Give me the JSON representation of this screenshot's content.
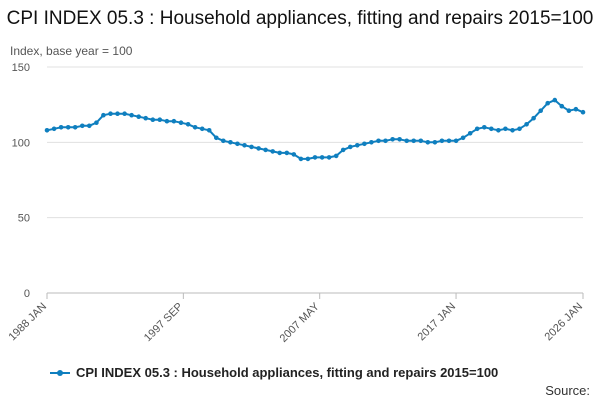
{
  "page": {
    "title": "CPI INDEX 05.3 : Household appliances, fitting and repairs 2015=100",
    "source_label": "Source:"
  },
  "colors": {
    "series": "#0f7fbf",
    "grid": "#e0e0e0",
    "axis": "#bbbbbb",
    "text": "#555555"
  },
  "chart_data": {
    "type": "line",
    "title": "CPI INDEX 05.3 : Household appliances, fitting and repairs 2015=100",
    "ylabel": "Index, base year = 100",
    "xlabel": "",
    "ylim": [
      0,
      150
    ],
    "yticks": [
      0,
      50,
      100,
      150
    ],
    "xtick_labels": [
      "1988 JAN",
      "1997 SEP",
      "2007 MAY",
      "2017 JAN",
      "2026 JAN"
    ],
    "xtick_dates": [
      "1988-01",
      "1997-09",
      "2007-05",
      "2017-01",
      "2026-01"
    ],
    "xlim": [
      "1988-01",
      "2026-01"
    ],
    "grid": true,
    "legend_position": "bottom",
    "series": [
      {
        "name": "CPI INDEX 05.3 : Household appliances, fitting and repairs 2015=100",
        "marker": "circle",
        "x": [
          "1988-01",
          "1988-07",
          "1989-01",
          "1989-07",
          "1990-01",
          "1990-07",
          "1991-01",
          "1991-07",
          "1992-01",
          "1992-07",
          "1993-01",
          "1993-07",
          "1994-01",
          "1994-07",
          "1995-01",
          "1995-07",
          "1996-01",
          "1996-07",
          "1997-01",
          "1997-07",
          "1998-01",
          "1998-07",
          "1999-01",
          "1999-07",
          "2000-01",
          "2000-07",
          "2001-01",
          "2001-07",
          "2002-01",
          "2002-07",
          "2003-01",
          "2003-07",
          "2004-01",
          "2004-07",
          "2005-01",
          "2005-07",
          "2006-01",
          "2006-07",
          "2007-01",
          "2007-07",
          "2008-01",
          "2008-07",
          "2009-01",
          "2009-07",
          "2010-01",
          "2010-07",
          "2011-01",
          "2011-07",
          "2012-01",
          "2012-07",
          "2013-01",
          "2013-07",
          "2014-01",
          "2014-07",
          "2015-01",
          "2015-07",
          "2016-01",
          "2016-07",
          "2017-01",
          "2017-07",
          "2018-01",
          "2018-07",
          "2019-01",
          "2019-07",
          "2020-01",
          "2020-07",
          "2021-01",
          "2021-07",
          "2022-01",
          "2022-07",
          "2023-01",
          "2023-07",
          "2024-01",
          "2024-07",
          "2025-01",
          "2025-07",
          "2026-01"
        ],
        "values": [
          108,
          109,
          110,
          110,
          110,
          111,
          111,
          113,
          118,
          119,
          119,
          119,
          118,
          117,
          116,
          115,
          115,
          114,
          114,
          113,
          112,
          110,
          109,
          108,
          103,
          101,
          100,
          99,
          98,
          97,
          96,
          95,
          94,
          93,
          93,
          92,
          89,
          89,
          90,
          90,
          90,
          91,
          95,
          97,
          98,
          99,
          100,
          101,
          101,
          102,
          102,
          101,
          101,
          101,
          100,
          100,
          101,
          101,
          101,
          103,
          106,
          109,
          110,
          109,
          108,
          109,
          108,
          109,
          112,
          116,
          121,
          126,
          128,
          124,
          121,
          122,
          120
        ]
      }
    ]
  }
}
